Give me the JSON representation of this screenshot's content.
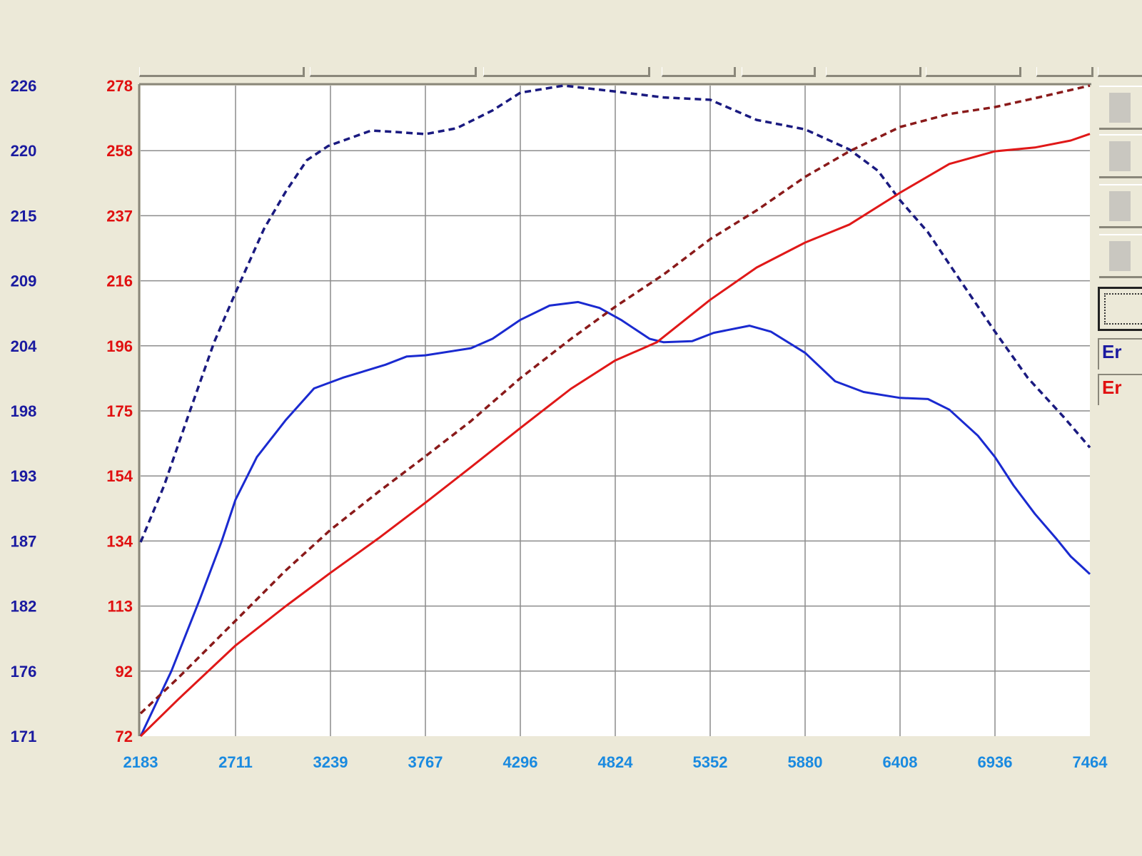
{
  "chart_data": {
    "type": "line",
    "title": "",
    "xlabel": "",
    "xlim": [
      2183,
      7464
    ],
    "x_ticks": [
      "2183",
      "2711",
      "3239",
      "3767",
      "4296",
      "4824",
      "5352",
      "5880",
      "6408",
      "6936",
      "7464"
    ],
    "left_axis_blue": {
      "ticks": [
        "226",
        "220",
        "215",
        "209",
        "204",
        "198",
        "193",
        "187",
        "182",
        "176",
        "171"
      ],
      "range": [
        171,
        226
      ],
      "color": "#1a1aa0"
    },
    "left_axis_red": {
      "ticks": [
        "278",
        "258",
        "237",
        "216",
        "196",
        "175",
        "154",
        "134",
        "113",
        "92",
        "72"
      ],
      "range": [
        72,
        278
      ],
      "color": "#e01010"
    },
    "grid": true,
    "series": [
      {
        "axis": "blue",
        "style": "dashed",
        "color": "#1a1a80",
        "x": [
          2183,
          2314,
          2453,
          2592,
          2711,
          2870,
          2989,
          3108,
          3227,
          3466,
          3585,
          3767,
          3942,
          4141,
          4296,
          4537,
          4824,
          5093,
          5352,
          5610,
          5880,
          6126,
          6285,
          6408,
          6563,
          6722,
          6936,
          7118,
          7317,
          7464
        ],
        "y": [
          187.4,
          192.2,
          198.3,
          204.3,
          208.5,
          213.9,
          217.0,
          219.7,
          220.9,
          222.2,
          222.1,
          221.9,
          222.4,
          223.9,
          225.4,
          226.0,
          225.5,
          225.0,
          224.8,
          223.1,
          222.3,
          220.6,
          218.8,
          216.3,
          213.6,
          210.0,
          205.2,
          201.3,
          198.0,
          195.4
        ]
      },
      {
        "axis": "blue",
        "style": "solid",
        "color": "#1a2ad0",
        "x": [
          2183,
          2354,
          2513,
          2632,
          2711,
          2830,
          2989,
          3148,
          3307,
          3545,
          3664,
          3767,
          4021,
          4141,
          4296,
          4458,
          4617,
          4736,
          4855,
          5014,
          5093,
          5252,
          5371,
          5570,
          5689,
          5880,
          6047,
          6205,
          6408,
          6563,
          6682,
          6841,
          6936,
          7039,
          7158,
          7277,
          7357,
          7464
        ],
        "y": [
          171.0,
          176.5,
          182.6,
          187.4,
          191.0,
          194.6,
          197.7,
          200.4,
          201.3,
          202.4,
          203.1,
          203.2,
          203.8,
          204.6,
          206.2,
          207.4,
          207.7,
          207.2,
          206.2,
          204.6,
          204.3,
          204.4,
          205.1,
          205.7,
          205.2,
          203.4,
          201.0,
          200.1,
          199.6,
          199.5,
          198.6,
          196.4,
          194.6,
          192.2,
          189.8,
          187.7,
          186.2,
          184.7
        ]
      },
      {
        "axis": "red",
        "style": "dashed",
        "color": "#8a1a1a",
        "x": [
          2183,
          2393,
          2592,
          2791,
          2989,
          3239,
          3505,
          3767,
          4021,
          4296,
          4577,
          4824,
          5093,
          5352,
          5610,
          5880,
          6126,
          6408,
          6682,
          6936,
          7158,
          7464
        ],
        "y": [
          79.2,
          90.5,
          101.8,
          113.1,
          124.4,
          137.3,
          149.3,
          160.6,
          171.8,
          185.4,
          197.8,
          208.0,
          218.2,
          229.4,
          238.5,
          249.1,
          257.2,
          264.9,
          269.0,
          271.2,
          274.0,
          278.0
        ]
      },
      {
        "axis": "red",
        "style": "solid",
        "color": "#e01818",
        "x": [
          2183,
          2393,
          2711,
          2989,
          3239,
          3505,
          3767,
          4021,
          4296,
          4577,
          4824,
          5054,
          5352,
          5610,
          5880,
          6126,
          6408,
          6682,
          6936,
          7158,
          7357,
          7464
        ],
        "y": [
          72.0,
          83.7,
          100.7,
          113.1,
          123.7,
          134.6,
          145.9,
          157.2,
          169.6,
          182.0,
          191.0,
          196.7,
          210.2,
          220.4,
          228.3,
          234.0,
          244.1,
          253.2,
          257.2,
          258.4,
          260.6,
          262.7
        ]
      }
    ]
  },
  "side_panel": {
    "entry_blue": "Er",
    "entry_red": "Er",
    "entry_blue_color": "#1a1aa0",
    "entry_red_color": "#e01010"
  }
}
